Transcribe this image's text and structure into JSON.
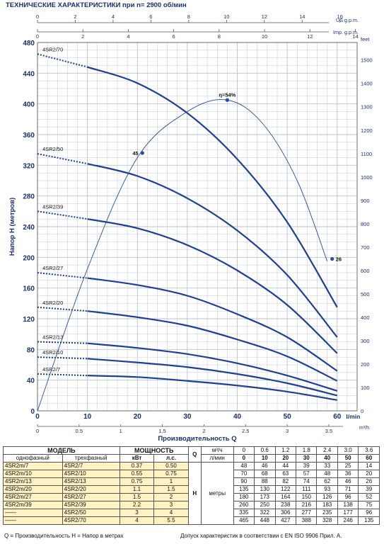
{
  "header": {
    "title": "ТЕХНИЧЕСКИЕ ХАРАКТЕРИСТИКИ при n= 2900 об/мин"
  },
  "chart_data": {
    "type": "line",
    "ylabel_left": "Напор H  (метров)",
    "ylabel_right_unit": "feet",
    "xlabel": "Производительность  Q",
    "x_unit": "l/min",
    "x_m3h_unit": "m³/h",
    "us_unit": "US g.p.m.",
    "imp_unit": "Imp. g.p.m.",
    "xlim": [
      0,
      64
    ],
    "ylim": [
      0,
      480
    ],
    "x_ticks": [
      "0",
      "10",
      "20",
      "30",
      "40",
      "50",
      "60"
    ],
    "y_ticks": [
      "0",
      "40",
      "80",
      "120",
      "160",
      "200",
      "240",
      "280",
      "320",
      "360",
      "400",
      "440",
      "480"
    ],
    "feet_ticks": [
      "0",
      "100",
      "200",
      "300",
      "400",
      "500",
      "600",
      "700",
      "800",
      "900",
      "1000",
      "1100",
      "1200",
      "1300",
      "1400",
      "1500"
    ],
    "m3h_ticks": [
      "0",
      "0.5",
      "1",
      "1.5",
      "2",
      "2.5",
      "3",
      "3.5"
    ],
    "us_ticks": [
      "0",
      "2",
      "4",
      "6",
      "8",
      "10",
      "12",
      "14",
      "16"
    ],
    "imp_ticks": [
      "0",
      "2",
      "4",
      "6",
      "8",
      "10",
      "12",
      "14"
    ],
    "series": [
      {
        "name": "4SR2/7",
        "x": [
          10,
          20,
          30,
          40,
          50,
          60
        ],
        "y": [
          46,
          44,
          39,
          33,
          25,
          14
        ]
      },
      {
        "name": "4SR2/10",
        "x": [
          10,
          20,
          30,
          40,
          50,
          60
        ],
        "y": [
          68,
          63,
          57,
          48,
          36,
          20
        ]
      },
      {
        "name": "4SR2/13",
        "x": [
          10,
          20,
          30,
          40,
          50,
          60
        ],
        "y": [
          88,
          82,
          74,
          62,
          46,
          26
        ]
      },
      {
        "name": "4SR2/20",
        "x": [
          10,
          20,
          30,
          40,
          50,
          60
        ],
        "y": [
          130,
          122,
          111,
          93,
          71,
          39
        ]
      },
      {
        "name": "4SR2/27",
        "x": [
          10,
          20,
          30,
          40,
          50,
          60
        ],
        "y": [
          173,
          164,
          150,
          126,
          96,
          52
        ]
      },
      {
        "name": "4SR2/39",
        "x": [
          10,
          20,
          30,
          40,
          50,
          60
        ],
        "y": [
          250,
          238,
          216,
          183,
          138,
          75
        ]
      },
      {
        "name": "4SR2/50",
        "x": [
          10,
          20,
          30,
          40,
          50,
          60
        ],
        "y": [
          322,
          306,
          277,
          235,
          177,
          96
        ]
      },
      {
        "name": "4SR2/70",
        "x": [
          10,
          20,
          30,
          40,
          50,
          60
        ],
        "y": [
          448,
          427,
          388,
          328,
          246,
          135
        ]
      }
    ],
    "shutoff_heads": [
      48,
      70,
      90,
      135,
      180,
      260,
      335,
      465
    ],
    "efficiency_curve": {
      "x": [
        0,
        10,
        20,
        30,
        38,
        45,
        52,
        58
      ],
      "y": [
        0,
        185,
        330,
        390,
        405,
        375,
        300,
        195
      ],
      "points": [
        {
          "label": "45",
          "x": 21,
          "y": 336
        },
        {
          "label": "η=54%",
          "x": 38,
          "y": 405
        },
        {
          "label": "26",
          "x": 59,
          "y": 198
        }
      ]
    }
  },
  "table": {
    "col_model": "МОДЕЛЬ",
    "col_power": "МОЩНОСТЬ",
    "sub_single": "однофазный",
    "sub_three": "трехфазный",
    "sub_kw": "кВт",
    "sub_hp": "л.с.",
    "q_label": "Q",
    "unit_m3h": "м³/ч",
    "unit_lmin": "л/мин",
    "h_label": "H",
    "h_unit": "метры",
    "q_m3h": [
      "0",
      "0.6",
      "1.2",
      "1.8",
      "2.4",
      "3.0",
      "3.6"
    ],
    "q_lmin": [
      "0",
      "10",
      "20",
      "30",
      "40",
      "50",
      "60"
    ],
    "rows": [
      {
        "single": "4SR2m/7",
        "three": "4SR2/7",
        "kw": "0.37",
        "hp": "0.50",
        "h": [
          "48",
          "46",
          "44",
          "39",
          "33",
          "25",
          "14"
        ]
      },
      {
        "single": "4SR2m/10",
        "three": "4SR2/10",
        "kw": "0.55",
        "hp": "0.75",
        "h": [
          "70",
          "68",
          "63",
          "57",
          "48",
          "36",
          "20"
        ]
      },
      {
        "single": "4SR2m/13",
        "three": "4SR2/13",
        "kw": "0.75",
        "hp": "1",
        "h": [
          "90",
          "88",
          "82",
          "74",
          "62",
          "46",
          "26"
        ]
      },
      {
        "single": "4SR2m/20",
        "three": "4SR2/20",
        "kw": "1.1",
        "hp": "1.5",
        "h": [
          "135",
          "130",
          "122",
          "111",
          "93",
          "71",
          "39"
        ]
      },
      {
        "single": "4SR2m/27",
        "three": "4SR2/27",
        "kw": "1.5",
        "hp": "2",
        "h": [
          "180",
          "173",
          "164",
          "150",
          "126",
          "96",
          "52"
        ]
      },
      {
        "single": "4SR2m/39",
        "three": "4SR2/39",
        "kw": "2.2",
        "hp": "3",
        "h": [
          "260",
          "250",
          "238",
          "216",
          "183",
          "138",
          "75"
        ]
      },
      {
        "single": "——",
        "three": "4SR2/50",
        "kw": "3",
        "hp": "4",
        "h": [
          "335",
          "322",
          "306",
          "277",
          "235",
          "177",
          "96"
        ]
      },
      {
        "single": "——",
        "three": "4SR2/70",
        "kw": "4",
        "hp": "5.5",
        "h": [
          "465",
          "448",
          "427",
          "388",
          "328",
          "246",
          "135"
        ]
      }
    ]
  },
  "footer": {
    "left": "Q = Производительность   H = Напор в метрах",
    "right": "Допуск характеристик в соответствии с EN ISO 9906 Прил.  A."
  },
  "colors": {
    "curve": "#1f3f8f",
    "grid": "#b9c2cf",
    "axis_text": "#1a2f6b",
    "eff": "#2b4d9e",
    "highlight": "#fff2c2"
  }
}
